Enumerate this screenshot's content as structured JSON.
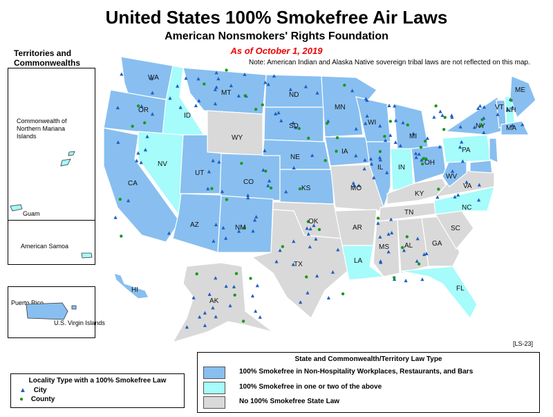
{
  "header": {
    "title": "United States 100% Smokefree Air Laws",
    "subtitle": "American Nonsmokers' Rights Foundation",
    "date": "As of October 1, 2019",
    "note": "Note: American Indian and Alaska Native sovereign tribal laws are not reflected on this map."
  },
  "territories": {
    "title_line1": "Territories and",
    "title_line2": "Commonwealths",
    "cnmi_line1": "Commonwealth of",
    "cnmi_line2": "Northern Mariana",
    "cnmi_line3": "Islands",
    "guam": "Guam",
    "samoa": "American Samoa",
    "pr": "Puerto Rico",
    "usvi": "U.S. Virgin Islands"
  },
  "colors": {
    "full": "#88bff0",
    "partial": "#a6fbfb",
    "none": "#d9d9d9",
    "city": "#1f5fbf",
    "county": "#1a9a1a"
  },
  "states": {
    "WA": "WA",
    "OR": "OR",
    "CA": "CA",
    "ID": "ID",
    "NV": "NV",
    "MT": "MT",
    "WY": "WY",
    "UT": "UT",
    "AZ": "AZ",
    "CO": "CO",
    "NM": "NM",
    "ND": "ND",
    "SD": "SD",
    "NE": "NE",
    "KS": "KS",
    "OK": "OK",
    "TX": "TX",
    "MN": "MN",
    "IA": "IA",
    "MO": "MO",
    "AR": "AR",
    "LA": "LA",
    "WI": "WI",
    "IL": "IL",
    "MS": "MS",
    "MI": "MI",
    "IN": "IN",
    "KY": "KY",
    "TN": "TN",
    "AL": "AL",
    "OH": "OH",
    "GA": "GA",
    "FL": "FL",
    "SC": "SC",
    "NC": "NC",
    "VA": "VA",
    "WV": "WV",
    "PA": "PA",
    "NY": "NY",
    "VT": "VT",
    "NH": "NH",
    "ME": "ME",
    "MA": "MA",
    "AK": "AK",
    "HI": "HI"
  },
  "code": "[LS-23]",
  "legend": {
    "title": "State and Commonwealth/Territory Law Type",
    "full": "100% Smokefree in Non-Hospitality Workplaces, Restaurants, and Bars",
    "partial": "100% Smokefree in one or two of the above",
    "none": "No 100% Smokefree State Law"
  },
  "locality": {
    "title": "Locality Type with a 100% Smokefree Law",
    "city": "City",
    "county": "County"
  }
}
